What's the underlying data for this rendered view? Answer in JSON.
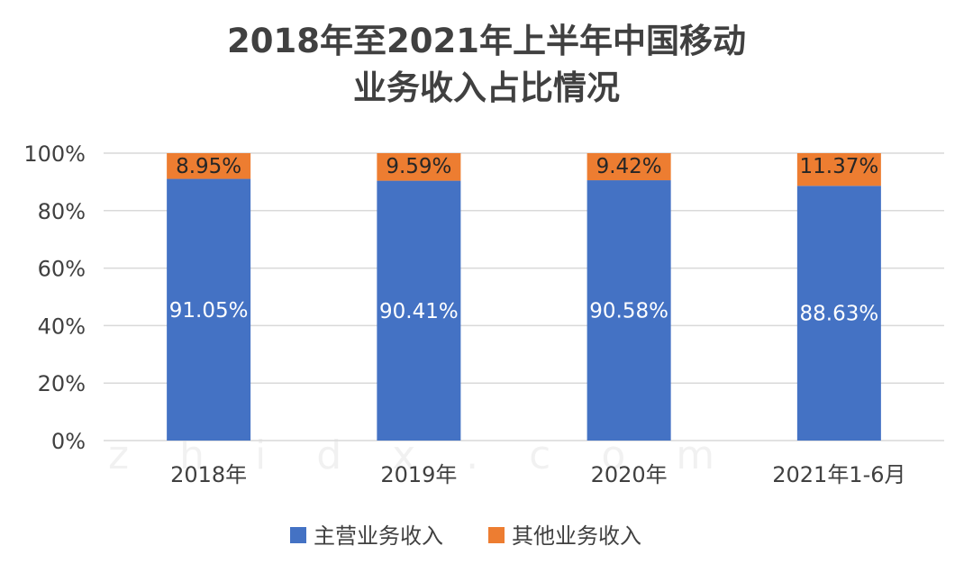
{
  "chart_data": {
    "type": "bar",
    "stacked": true,
    "title": [
      "2018年至2021年上半年中国移动",
      "业务收入占比情况"
    ],
    "categories": [
      "2018年",
      "2019年",
      "2020年",
      "2021年1-6月"
    ],
    "series": [
      {
        "name": "主营业务收入",
        "values": [
          91.05,
          90.41,
          90.58,
          88.63
        ],
        "labels": [
          "91.05%",
          "90.41%",
          "90.58%",
          "88.63%"
        ],
        "color": "#4472C4"
      },
      {
        "name": "其他业务收入",
        "values": [
          8.95,
          9.59,
          9.42,
          11.37
        ],
        "labels": [
          "8.95%",
          "9.59%",
          "9.42%",
          "11.37%"
        ],
        "color": "#ED7D31"
      }
    ],
    "yticks": [
      "0%",
      "20%",
      "40%",
      "60%",
      "80%",
      "100%"
    ],
    "ylim": [
      0,
      100
    ],
    "grid": true,
    "legend": "bottom",
    "watermark": "zhidx.com"
  }
}
